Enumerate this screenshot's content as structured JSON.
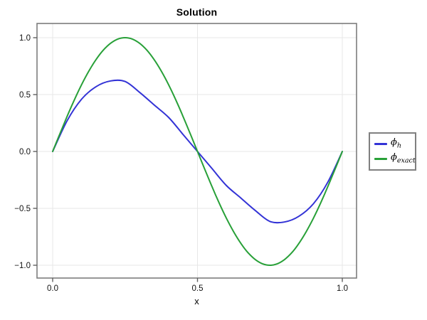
{
  "chart_data": {
    "type": "line",
    "title": "Solution",
    "xlabel": "x",
    "ylabel": "",
    "xlim": [
      -0.054,
      1.052
    ],
    "ylim": [
      -1.113,
      1.125
    ],
    "grid": true,
    "legend_position": "outside-right",
    "axis": {
      "xticks": {
        "values": [
          0.0,
          0.5,
          1.0
        ],
        "labels": [
          "0.0",
          "0.5",
          "1.0"
        ]
      },
      "yticks": {
        "values": [
          -1.0,
          -0.5,
          0.0,
          0.5,
          1.0
        ],
        "labels": [
          "−1.0",
          "−0.5",
          "0.0",
          "0.5",
          "1.0"
        ]
      }
    },
    "series": [
      {
        "name": "ϕ_h",
        "symbol": "ϕ",
        "subscript": "h",
        "color": "#3333D6",
        "x": [
          0,
          0.05,
          0.1,
          0.15,
          0.2,
          0.25,
          0.3,
          0.35,
          0.4,
          0.45,
          0.5,
          0.55,
          0.6,
          0.65,
          0.7,
          0.75,
          0.8,
          0.85,
          0.9,
          0.95,
          1.0
        ],
        "y": [
          0,
          0.27,
          0.46,
          0.57,
          0.62,
          0.615,
          0.52,
          0.41,
          0.3,
          0.15,
          0,
          -0.15,
          -0.3,
          -0.41,
          -0.52,
          -0.615,
          -0.62,
          -0.57,
          -0.46,
          -0.27,
          0
        ]
      },
      {
        "name": "ϕ_exact",
        "symbol": "ϕ",
        "subscript": "exact",
        "color": "#28A038",
        "x": [
          0,
          0.025,
          0.05,
          0.075,
          0.1,
          0.125,
          0.15,
          0.175,
          0.2,
          0.225,
          0.25,
          0.275,
          0.3,
          0.325,
          0.35,
          0.375,
          0.4,
          0.425,
          0.45,
          0.475,
          0.5,
          0.525,
          0.55,
          0.575,
          0.6,
          0.625,
          0.65,
          0.675,
          0.7,
          0.725,
          0.75,
          0.775,
          0.8,
          0.825,
          0.85,
          0.875,
          0.9,
          0.925,
          0.95,
          0.975,
          1.0
        ],
        "y": [
          0,
          0.156,
          0.309,
          0.454,
          0.588,
          0.707,
          0.809,
          0.891,
          0.951,
          0.988,
          1.0,
          0.988,
          0.951,
          0.891,
          0.809,
          0.707,
          0.588,
          0.454,
          0.309,
          0.156,
          0,
          -0.156,
          -0.309,
          -0.454,
          -0.588,
          -0.707,
          -0.809,
          -0.891,
          -0.951,
          -0.988,
          -1.0,
          -0.988,
          -0.951,
          -0.891,
          -0.809,
          -0.707,
          -0.588,
          -0.454,
          -0.309,
          -0.156,
          0
        ]
      }
    ],
    "style": {
      "background": "#ffffff",
      "frame_color": "#7d7d7d",
      "grid_color": "#e7e7e7",
      "tick_color": "#606060",
      "tick_label_color": "#111111",
      "legend_border_color": "#808080"
    }
  }
}
